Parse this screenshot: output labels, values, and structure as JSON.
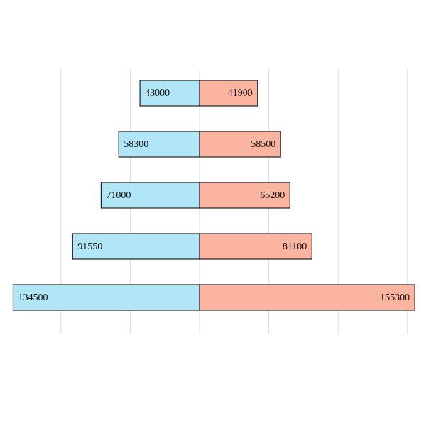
{
  "chart_data": {
    "type": "butterfly-bar",
    "categories": [
      null,
      null,
      null,
      null,
      null
    ],
    "series": [
      {
        "color": "#b0e6f5",
        "values": [
          43000,
          58300,
          71000,
          91550,
          134500
        ]
      },
      {
        "color": "#fbb4a0",
        "values": [
          41900,
          58500,
          65200,
          81100,
          155300
        ]
      }
    ],
    "xlim": [
      -135000,
      156000
    ],
    "xticks": [
      -100000,
      -50000,
      0,
      50000,
      100000,
      150000
    ],
    "grid": true
  }
}
